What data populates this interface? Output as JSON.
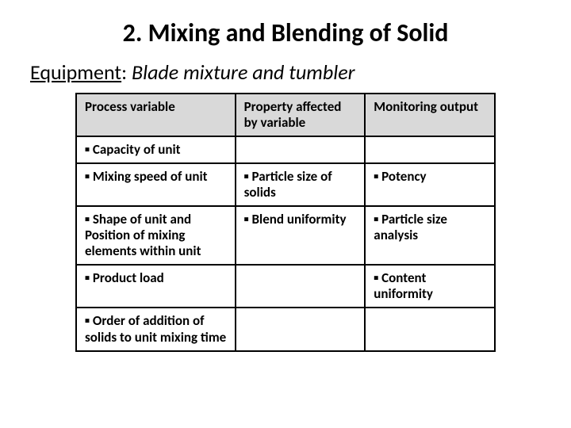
{
  "title": "2. Mixing and Blending of Solid",
  "subtitle": {
    "label": "Equipment",
    "text": "Blade mixture and tumbler"
  },
  "table": {
    "header_bg": "#d9d9d9",
    "border_color": "#000000",
    "columns": [
      {
        "label": "Process variable",
        "width_pct": 38
      },
      {
        "label": "Property affected by variable",
        "width_pct": 31
      },
      {
        "label": "Monitoring output",
        "width_pct": 31
      }
    ],
    "rows": [
      [
        "▪ Capacity of unit",
        "",
        ""
      ],
      [
        "▪ Mixing speed of unit",
        "▪ Particle size of solids",
        "▪ Potency"
      ],
      [
        "▪ Shape of unit and Position of mixing elements within unit",
        "▪ Blend uniformity",
        "▪ Particle size analysis"
      ],
      [
        "▪ Product load",
        "",
        "▪ Content uniformity"
      ],
      [
        "▪ Order of addition of solids to unit mixing time",
        "",
        ""
      ]
    ]
  },
  "style": {
    "title_fontsize": 32,
    "subtitle_fontsize": 26,
    "cell_fontsize": 17,
    "background_color": "#ffffff",
    "text_color": "#000000"
  }
}
